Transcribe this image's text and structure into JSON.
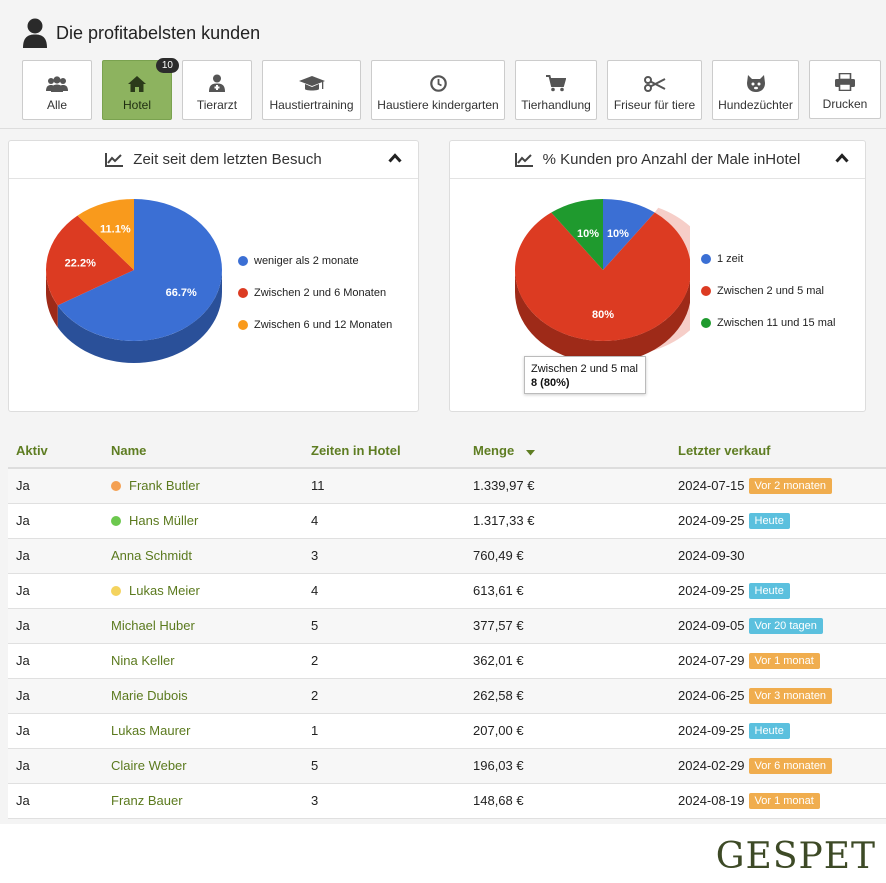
{
  "page": {
    "title": "Die profitabelsten kunden",
    "brand": "GESPET"
  },
  "toolbar": {
    "items": [
      {
        "label": "Alle",
        "icon": "users-icon"
      },
      {
        "label": "Hotel",
        "icon": "home-icon",
        "active": true,
        "badge": "10"
      },
      {
        "label": "Tierarzt",
        "icon": "doctor-icon"
      },
      {
        "label": "Haustiertraining",
        "icon": "graduation-cap-icon"
      },
      {
        "label": "Haustiere kindergarten",
        "icon": "clock-icon"
      },
      {
        "label": "Tierhandlung",
        "icon": "cart-icon"
      },
      {
        "label": "Friseur für tiere",
        "icon": "scissors-icon"
      },
      {
        "label": "Hundezüchter",
        "icon": "dog-icon"
      },
      {
        "label": "Drucken",
        "icon": "printer-icon"
      }
    ]
  },
  "panels": {
    "left_title": "Zeit seit dem letzten Besuch",
    "right_title": "% Kunden pro Anzahl der Male inHotel"
  },
  "chart_data": [
    {
      "type": "pie",
      "title": "Zeit seit dem letzten Besuch",
      "legend_position": "right",
      "slices": [
        {
          "label": "weniger als 2  monate",
          "value": 66.7,
          "display": "66.7%",
          "color": "#3b6fd4"
        },
        {
          "label": "Zwischen 2 und 6 Monaten",
          "value": 22.2,
          "display": "22.2%",
          "color": "#dc3b22"
        },
        {
          "label": "Zwischen 6  und 12  Monaten",
          "value": 11.1,
          "display": "11.1%",
          "color": "#f99a1c"
        }
      ]
    },
    {
      "type": "pie",
      "title": "% Kunden pro Anzahl der Male inHotel",
      "legend_position": "right",
      "slices": [
        {
          "label": "1 zeit",
          "value": 10,
          "display": "10%",
          "color": "#3b6fd4"
        },
        {
          "label": "Zwischen 2 und 5 mal",
          "value": 80,
          "display": "80%",
          "color": "#dc3b22"
        },
        {
          "label": "Zwischen 11 und 15 mal",
          "value": 10,
          "display": "10%",
          "color": "#1f9a2e"
        }
      ],
      "tooltip": {
        "label": "Zwischen 2 und 5 mal",
        "value": "8 (80%)"
      }
    }
  ],
  "table": {
    "headers": [
      "Aktiv",
      "Name",
      "Zeiten in Hotel",
      "Menge",
      "Letzter verkauf"
    ],
    "rows": [
      {
        "aktiv": "Ja",
        "name": "Frank Butler",
        "dot": "#f4a052",
        "zeiten": "11",
        "menge": "1.339,97 €",
        "datum": "2024-07-15",
        "tag": "Vor 2 monaten",
        "tagColor": "orange"
      },
      {
        "aktiv": "Ja",
        "name": "Hans Müller",
        "dot": "#6cc84e",
        "zeiten": "4",
        "menge": "1.317,33 €",
        "datum": "2024-09-25",
        "tag": "Heute",
        "tagColor": "blue"
      },
      {
        "aktiv": "Ja",
        "name": "Anna Schmidt",
        "dot": "",
        "zeiten": "3",
        "menge": "760,49 €",
        "datum": "2024-09-30",
        "tag": "",
        "tagColor": ""
      },
      {
        "aktiv": "Ja",
        "name": "Lukas Meier",
        "dot": "#f4d35e",
        "zeiten": "4",
        "menge": "613,61 €",
        "datum": "2024-09-25",
        "tag": "Heute",
        "tagColor": "blue"
      },
      {
        "aktiv": "Ja",
        "name": "Michael Huber",
        "dot": "",
        "zeiten": "5",
        "menge": "377,57 €",
        "datum": "2024-09-05",
        "tag": "Vor 20 tagen",
        "tagColor": "blue"
      },
      {
        "aktiv": "Ja",
        "name": "Nina Keller",
        "dot": "",
        "zeiten": "2",
        "menge": "362,01 €",
        "datum": "2024-07-29",
        "tag": "Vor 1 monat",
        "tagColor": "orange"
      },
      {
        "aktiv": "Ja",
        "name": "Marie Dubois",
        "dot": "",
        "zeiten": "2",
        "menge": "262,58 €",
        "datum": "2024-06-25",
        "tag": "Vor 3 monaten",
        "tagColor": "orange"
      },
      {
        "aktiv": "Ja",
        "name": "Lukas Maurer",
        "dot": "",
        "zeiten": "1",
        "menge": "207,00 €",
        "datum": "2024-09-25",
        "tag": "Heute",
        "tagColor": "blue"
      },
      {
        "aktiv": "Ja",
        "name": "Claire Weber",
        "dot": "",
        "zeiten": "5",
        "menge": "196,03 €",
        "datum": "2024-02-29",
        "tag": "Vor 6 monaten",
        "tagColor": "orange"
      },
      {
        "aktiv": "Ja",
        "name": "Franz Bauer",
        "dot": "",
        "zeiten": "3",
        "menge": "148,68 €",
        "datum": "2024-08-19",
        "tag": "Vor 1 monat",
        "tagColor": "orange"
      }
    ]
  }
}
